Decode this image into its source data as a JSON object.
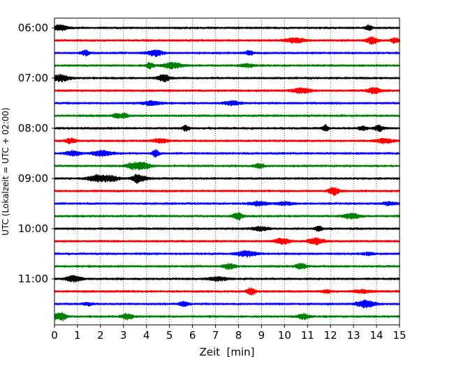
{
  "chart_data": {
    "type": "line",
    "title": "",
    "xlabel": "Zeit  [min]",
    "ylabel": "UTC (Lokalzeit = UTC + 02:00)",
    "xlim": [
      0,
      15
    ],
    "x_ticks": [
      "0",
      "1",
      "2",
      "3",
      "4",
      "5",
      "6",
      "7",
      "8",
      "9",
      "10",
      "11",
      "12",
      "13",
      "14",
      "15"
    ],
    "y_tick_labels": [
      "06:00",
      "07:00",
      "08:00",
      "09:00",
      "10:00",
      "11:00"
    ],
    "row_start_times": [
      "06:00",
      "06:15",
      "06:30",
      "06:45",
      "07:00",
      "07:15",
      "07:30",
      "07:45",
      "08:00",
      "08:15",
      "08:30",
      "08:45",
      "09:00",
      "09:15",
      "09:30",
      "09:45",
      "10:00",
      "10:15",
      "10:30",
      "10:45",
      "11:00",
      "11:15",
      "11:30",
      "11:45"
    ],
    "trace_colors": [
      "#000000",
      "#ff0000",
      "#0000ff",
      "#008000"
    ],
    "grid_x": true,
    "grid_style": "dotted"
  }
}
